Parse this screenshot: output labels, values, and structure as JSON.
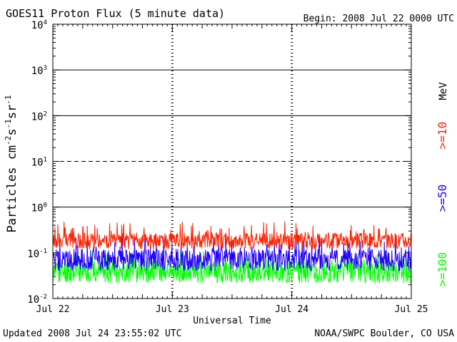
{
  "chart_data": {
    "type": "line",
    "title": "GOES11 Proton Flux (5 minute data)",
    "begin": "Begin: 2008 Jul 22 0000 UTC",
    "updated": "Updated 2008 Jul 24 23:55:02 UTC",
    "credit": "NOAA/SWPC Boulder, CO USA",
    "xlabel": "Universal Time",
    "ylabel_base": "Particles cm",
    "ylabel_exp1": "-2",
    "ylabel_mid1": "s",
    "ylabel_exp2": "-1",
    "ylabel_mid2": "sr",
    "ylabel_exp3": "-1",
    "x_ticks": [
      "Jul 22",
      "Jul 23",
      "Jul 24",
      "Jul 25"
    ],
    "x_range_days": [
      0,
      3
    ],
    "y_scale": "log",
    "y_ticks": [
      {
        "base": "10",
        "exp": "-2",
        "value": 0.01
      },
      {
        "base": "10",
        "exp": "-1",
        "value": 0.1
      },
      {
        "base": "10",
        "exp": "0",
        "value": 1
      },
      {
        "base": "10",
        "exp": "1",
        "value": 10
      },
      {
        "base": "10",
        "exp": "2",
        "value": 100
      },
      {
        "base": "10",
        "exp": "3",
        "value": 1000
      },
      {
        "base": "10",
        "exp": "4",
        "value": 10000
      }
    ],
    "ylim": [
      0.01,
      10000
    ],
    "threshold_lines": [
      {
        "value": 1,
        "style": "solid"
      },
      {
        "value": 10,
        "style": "dashed"
      },
      {
        "value": 100,
        "style": "solid"
      },
      {
        "value": 1000,
        "style": "solid"
      }
    ],
    "unit_label": "MeV",
    "series": [
      {
        "name": ">=10",
        "color": "#ff2200",
        "typical": 0.2,
        "min": 0.12,
        "max": 0.5
      },
      {
        "name": ">=50",
        "color": "#2200ff",
        "typical": 0.08,
        "min": 0.04,
        "max": 0.25
      },
      {
        "name": ">=100",
        "color": "#00ff00",
        "typical": 0.045,
        "min": 0.022,
        "max": 0.12
      }
    ]
  }
}
